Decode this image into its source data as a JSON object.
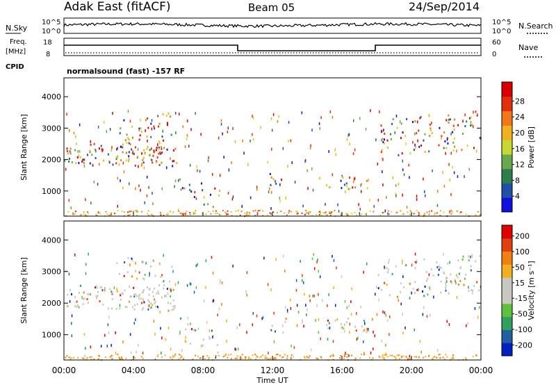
{
  "header": {
    "station": "Adak East (fitACF)",
    "beam": "Beam 05",
    "date": "24/Sep/2014"
  },
  "noise": {
    "left_label": "N.Sky",
    "right_label": "N.Search",
    "left_ticks": [
      "10^5",
      "10^0"
    ],
    "right_ticks": [
      "10^5",
      "10^0"
    ]
  },
  "freq": {
    "left_label_1": "Freq.",
    "left_label_2": "[MHz]",
    "left_ticks": [
      "18",
      "8"
    ],
    "right_label": "Nave",
    "right_ticks": [
      "60",
      "0"
    ],
    "cpid_label": "CPID",
    "cpid_text": "normalsound (fast) -157 RF"
  },
  "colors": {
    "power": [
      "#1010e0",
      "#2050a8",
      "#2e7d4c",
      "#6aa850",
      "#c8d830",
      "#f0b020",
      "#f07818",
      "#e03010",
      "#d80000"
    ],
    "velocity": [
      "#0020c0",
      "#2060a0",
      "#30a060",
      "#60c040",
      "#c8c8c0",
      "#c8c8c0",
      "#f0b020",
      "#f08010",
      "#e04010",
      "#e00000"
    ]
  },
  "chart_data": [
    {
      "type": "heatmap",
      "name": "power-panel",
      "xlabel": "",
      "ylabel": "Slant Range [km]",
      "xlim": [
        0,
        24
      ],
      "ylim": [
        200,
        4600
      ],
      "yticks": [
        "1000",
        "2000",
        "3000",
        "4000"
      ],
      "colorbar": {
        "label": "Power [dB]",
        "ticks": [
          "4",
          "8",
          "12",
          "16",
          "20",
          "24",
          "28"
        ]
      }
    },
    {
      "type": "heatmap",
      "name": "velocity-panel",
      "xlabel": "Time UT",
      "ylabel": "Slant Range [km]",
      "xlim": [
        0,
        24
      ],
      "ylim": [
        200,
        4600
      ],
      "xticks": [
        "00:00",
        "04:00",
        "08:00",
        "12:00",
        "16:00",
        "20:00",
        "00:00"
      ],
      "yticks": [
        "1000",
        "2000",
        "3000",
        "4000"
      ],
      "colorbar": {
        "label": "Velocity [m s⁻¹]",
        "ticks": [
          "200",
          "100",
          "50",
          "15",
          "-15",
          "-50",
          "-100",
          "-200"
        ]
      }
    }
  ]
}
